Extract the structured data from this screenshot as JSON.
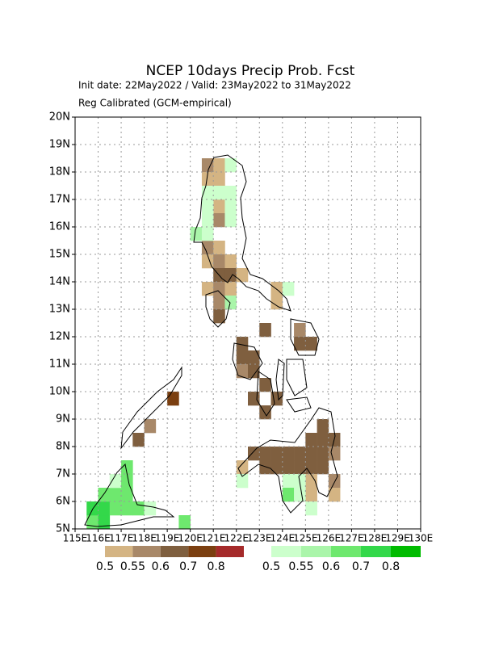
{
  "chart_data": {
    "type": "grid-map",
    "title": "NCEP 10days Precip Prob. Fcst",
    "subtitle": "Init date: 22May2022 / Valid: 23May2022 to 31May2022",
    "subtitle2": "Reg Calibrated (GCM-empirical)",
    "xlim": [
      115,
      130
    ],
    "ylim": [
      5,
      20
    ],
    "xticks": [
      {
        "value": 115,
        "label": "115E"
      },
      {
        "value": 116,
        "label": "116E"
      },
      {
        "value": 117,
        "label": "117E"
      },
      {
        "value": 118,
        "label": "118E"
      },
      {
        "value": 119,
        "label": "119E"
      },
      {
        "value": 120,
        "label": "120E"
      },
      {
        "value": 121,
        "label": "121E"
      },
      {
        "value": 122,
        "label": "122E"
      },
      {
        "value": 123,
        "label": "123E"
      },
      {
        "value": 124,
        "label": "124E"
      },
      {
        "value": 125,
        "label": "125E"
      },
      {
        "value": 126,
        "label": "126E"
      },
      {
        "value": 127,
        "label": "127E"
      },
      {
        "value": 128,
        "label": "128E"
      },
      {
        "value": 129,
        "label": "129E"
      },
      {
        "value": 130,
        "label": "130E"
      }
    ],
    "yticks": [
      {
        "value": 5,
        "label": "5N"
      },
      {
        "value": 6,
        "label": "6N"
      },
      {
        "value": 7,
        "label": "7N"
      },
      {
        "value": 8,
        "label": "8N"
      },
      {
        "value": 9,
        "label": "9N"
      },
      {
        "value": 10,
        "label": "10N"
      },
      {
        "value": 11,
        "label": "11N"
      },
      {
        "value": 12,
        "label": "12N"
      },
      {
        "value": 13,
        "label": "13N"
      },
      {
        "value": 14,
        "label": "14N"
      },
      {
        "value": 15,
        "label": "15N"
      },
      {
        "value": 16,
        "label": "16N"
      },
      {
        "value": 17,
        "label": "17N"
      },
      {
        "value": 18,
        "label": "18N"
      },
      {
        "value": 19,
        "label": "19N"
      },
      {
        "value": 20,
        "label": "20N"
      }
    ],
    "grid": true,
    "below": {
      "levels": [
        0.5,
        0.55,
        0.6,
        0.7,
        0.8
      ],
      "colors": [
        "#d4b483",
        "#a88868",
        "#7f5f3f",
        "#7b3f10",
        "#a52a2a"
      ],
      "cells": [
        [
          120.75,
          18.25,
          0.55
        ],
        [
          121.25,
          18.25,
          0.5
        ],
        [
          120.75,
          17.75,
          0.5
        ],
        [
          121.25,
          17.75,
          0.5
        ],
        [
          121.25,
          16.75,
          0.5
        ],
        [
          121.25,
          16.25,
          0.55
        ],
        [
          120.75,
          15.25,
          0.55
        ],
        [
          121.25,
          15.25,
          0.5
        ],
        [
          120.75,
          14.75,
          0.5
        ],
        [
          121.25,
          14.75,
          0.55
        ],
        [
          121.75,
          14.75,
          0.5
        ],
        [
          121.25,
          14.25,
          0.6
        ],
        [
          121.75,
          14.25,
          0.6
        ],
        [
          122.25,
          14.25,
          0.5
        ],
        [
          120.75,
          13.75,
          0.5
        ],
        [
          121.25,
          13.75,
          0.55
        ],
        [
          121.75,
          13.75,
          0.5
        ],
        [
          121.25,
          13.25,
          0.55
        ],
        [
          121.25,
          12.75,
          0.6
        ],
        [
          123.75,
          13.75,
          0.5
        ],
        [
          123.75,
          13.25,
          0.5
        ],
        [
          123.25,
          12.25,
          0.6
        ],
        [
          124.75,
          12.25,
          0.55
        ],
        [
          124.75,
          11.75,
          0.6
        ],
        [
          125.25,
          11.75,
          0.6
        ],
        [
          122.25,
          11.75,
          0.6
        ],
        [
          122.25,
          11.25,
          0.6
        ],
        [
          122.75,
          11.25,
          0.6
        ],
        [
          122.25,
          10.75,
          0.55
        ],
        [
          122.75,
          10.75,
          0.6
        ],
        [
          123.25,
          10.25,
          0.6
        ],
        [
          122.75,
          9.75,
          0.6
        ],
        [
          123.75,
          9.75,
          0.6
        ],
        [
          123.25,
          9.25,
          0.6
        ],
        [
          119.25,
          9.75,
          0.7
        ],
        [
          118.25,
          8.75,
          0.55
        ],
        [
          117.75,
          8.25,
          0.6
        ],
        [
          125.75,
          8.75,
          0.6
        ],
        [
          125.25,
          8.25,
          0.6
        ],
        [
          125.75,
          8.25,
          0.6
        ],
        [
          126.25,
          8.25,
          0.6
        ],
        [
          122.75,
          7.75,
          0.6
        ],
        [
          123.25,
          7.75,
          0.6
        ],
        [
          123.75,
          7.75,
          0.6
        ],
        [
          124.25,
          7.75,
          0.6
        ],
        [
          124.75,
          7.75,
          0.6
        ],
        [
          125.25,
          7.75,
          0.6
        ],
        [
          125.75,
          7.75,
          0.6
        ],
        [
          126.25,
          7.75,
          0.55
        ],
        [
          123.25,
          7.25,
          0.6
        ],
        [
          123.75,
          7.25,
          0.6
        ],
        [
          124.25,
          7.25,
          0.6
        ],
        [
          124.75,
          7.25,
          0.6
        ],
        [
          125.25,
          7.25,
          0.6
        ],
        [
          125.75,
          7.25,
          0.6
        ],
        [
          122.25,
          7.25,
          0.5
        ],
        [
          125.25,
          6.75,
          0.5
        ],
        [
          125.25,
          6.25,
          0.5
        ],
        [
          126.25,
          6.75,
          0.55
        ],
        [
          126.25,
          6.25,
          0.5
        ]
      ]
    },
    "above": {
      "levels": [
        0.5,
        0.55,
        0.6,
        0.7,
        0.8
      ],
      "colors": [
        "#ccffcc",
        "#aaf5aa",
        "#6ee86e",
        "#33d84a",
        "#00bb00"
      ],
      "cells": [
        [
          121.75,
          18.25,
          0.5
        ],
        [
          120.75,
          17.25,
          0.5
        ],
        [
          121.25,
          17.25,
          0.5
        ],
        [
          121.75,
          17.25,
          0.5
        ],
        [
          120.75,
          16.75,
          0.5
        ],
        [
          121.75,
          16.75,
          0.5
        ],
        [
          120.25,
          15.75,
          0.55
        ],
        [
          120.75,
          15.75,
          0.5
        ],
        [
          121.75,
          16.25,
          0.5
        ],
        [
          120.75,
          16.25,
          0.5
        ],
        [
          124.25,
          13.75,
          0.5
        ],
        [
          121.75,
          13.25,
          0.55
        ],
        [
          122.25,
          6.75,
          0.5
        ],
        [
          124.25,
          6.75,
          0.5
        ],
        [
          124.75,
          6.75,
          0.5
        ],
        [
          124.25,
          6.25,
          0.6
        ],
        [
          124.75,
          6.25,
          0.5
        ],
        [
          125.25,
          5.75,
          0.5
        ],
        [
          115.75,
          5.25,
          0.6
        ],
        [
          116.25,
          5.25,
          0.7
        ],
        [
          115.75,
          5.75,
          0.7
        ],
        [
          116.25,
          5.75,
          0.7
        ],
        [
          116.75,
          5.75,
          0.6
        ],
        [
          117.25,
          5.75,
          0.6
        ],
        [
          117.75,
          5.75,
          0.6
        ],
        [
          118.25,
          5.75,
          0.5
        ],
        [
          116.25,
          6.25,
          0.6
        ],
        [
          116.75,
          6.25,
          0.6
        ],
        [
          117.25,
          6.25,
          0.6
        ],
        [
          116.75,
          6.75,
          0.5
        ],
        [
          117.25,
          6.75,
          0.6
        ],
        [
          117.25,
          7.25,
          0.6
        ],
        [
          119.75,
          5.25,
          0.6
        ]
      ]
    }
  }
}
